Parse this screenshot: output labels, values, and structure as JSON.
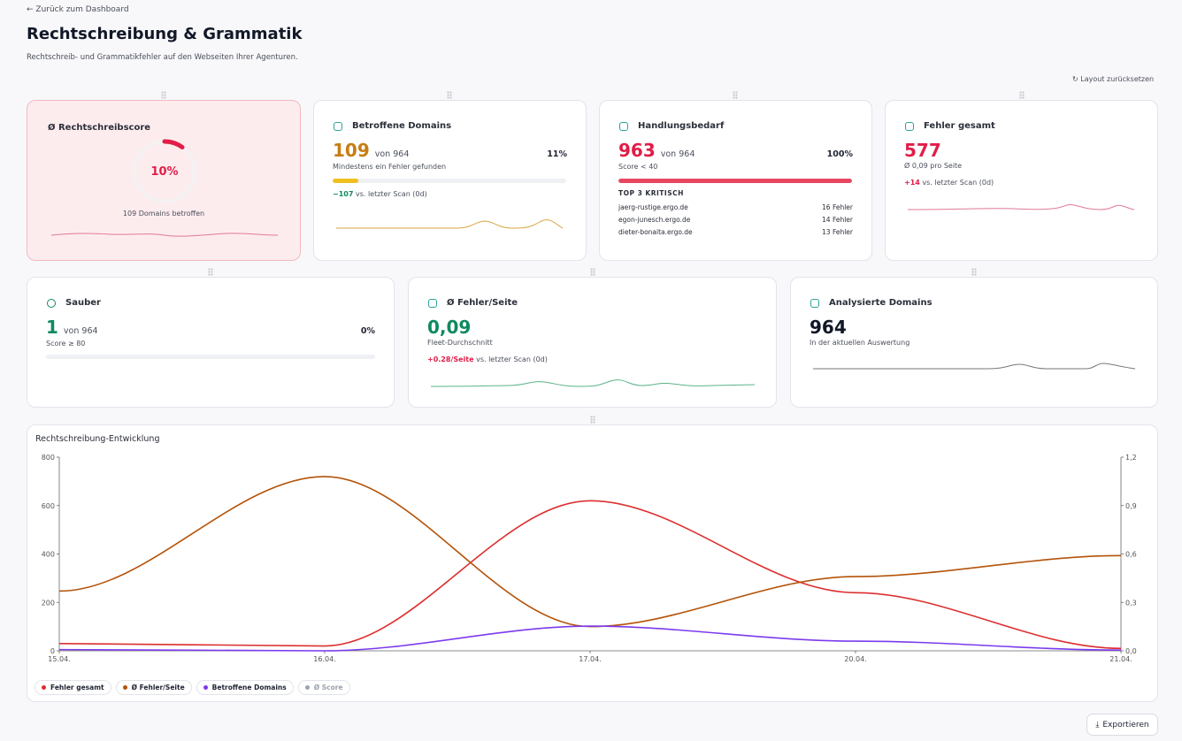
{
  "header": {
    "back": "← Zurück zum Dashboard",
    "title": "Rechtschreibung & Grammatik",
    "subtitle": "Rechtschreib- und Grammatikfehler auf den Webseiten Ihrer Agenturen.",
    "reset": "Layout zurücksetzen"
  },
  "cards": [
    {
      "title": "Ø Rechtschreibscore",
      "score": {
        "value": 10,
        "label": "10%"
      },
      "note": "109 Domains betroffen"
    },
    {
      "title": "Betroffene Domains",
      "value": "109",
      "of": "von 964",
      "percent": {
        "value": 11,
        "label": "11%"
      },
      "note": "Mindestens ein Fehler gefunden",
      "delta": "−107",
      "delta_note": "vs. letzter Scan (0d)"
    },
    {
      "title": "Handlungsbedarf",
      "value": "963",
      "of": "von 964",
      "percent": {
        "value": 100,
        "label": "100%"
      },
      "note": "Score < 40",
      "list_title": "TOP 3 KRITISCH",
      "list": [
        {
          "domain": "jaerg-rustige.ergo.de",
          "errors": "16 Fehler"
        },
        {
          "domain": "egon-junesch.ergo.de",
          "errors": "14 Fehler"
        },
        {
          "domain": "dieter-bonaita.ergo.de",
          "errors": "13 Fehler"
        }
      ]
    },
    {
      "title": "Fehler gesamt",
      "value": "577",
      "note": "Ø 0,09 pro Seite",
      "delta": "+14",
      "delta_note": "vs. letzter Scan (0d)"
    },
    {
      "title": "Sauber",
      "value": "1",
      "of": "von 964",
      "percent": {
        "value": 0,
        "label": "0%"
      },
      "note": "Score ≥ 80"
    },
    {
      "title": "Ø Fehler/Seite",
      "value": "0,09",
      "note": "Fleet-Durchschnitt",
      "delta": "+0.28/Seite",
      "delta_note": "vs. letzter Scan (0d)"
    },
    {
      "title": "Analysierte Domains",
      "value": "964",
      "note": "In der aktuellen Auswertung"
    }
  ],
  "chart_data": {
    "type": "line",
    "title": "Rechtschreibung-Entwicklung",
    "categories": [
      "15.04.",
      "16.04.",
      "17.04.",
      "20.04.",
      "21.04."
    ],
    "series": [
      {
        "name": "Fehler gesamt",
        "color": "#dc2f2f",
        "values": [
          30,
          20,
          620,
          240,
          10
        ]
      },
      {
        "name": "Ø Fehler/Seite",
        "color": "#b45309",
        "axis": "y2",
        "values": [
          0.37,
          1.08,
          0.15,
          0.46,
          0.59
        ]
      },
      {
        "name": "Betroffene Domains",
        "color": "#7c3aed",
        "values": [
          5,
          0,
          102,
          40,
          3
        ]
      },
      {
        "name": "Ø Score",
        "color": "#9ca3af",
        "hidden": true,
        "values": [
          null,
          null,
          null,
          null,
          null
        ]
      }
    ],
    "ylim": [
      0,
      800
    ],
    "yticks": [
      0,
      200,
      400,
      600,
      800
    ],
    "y2lim": [
      0,
      1.2
    ],
    "y2ticks": [
      {
        "value": 0,
        "label": "0,0"
      },
      {
        "value": 0.3,
        "label": "0,3"
      },
      {
        "value": 0.6,
        "label": "0,6"
      },
      {
        "value": 0.9,
        "label": "0,9"
      },
      {
        "value": 1.2,
        "label": "1,2"
      }
    ],
    "grid": false
  },
  "export": "Exportieren"
}
